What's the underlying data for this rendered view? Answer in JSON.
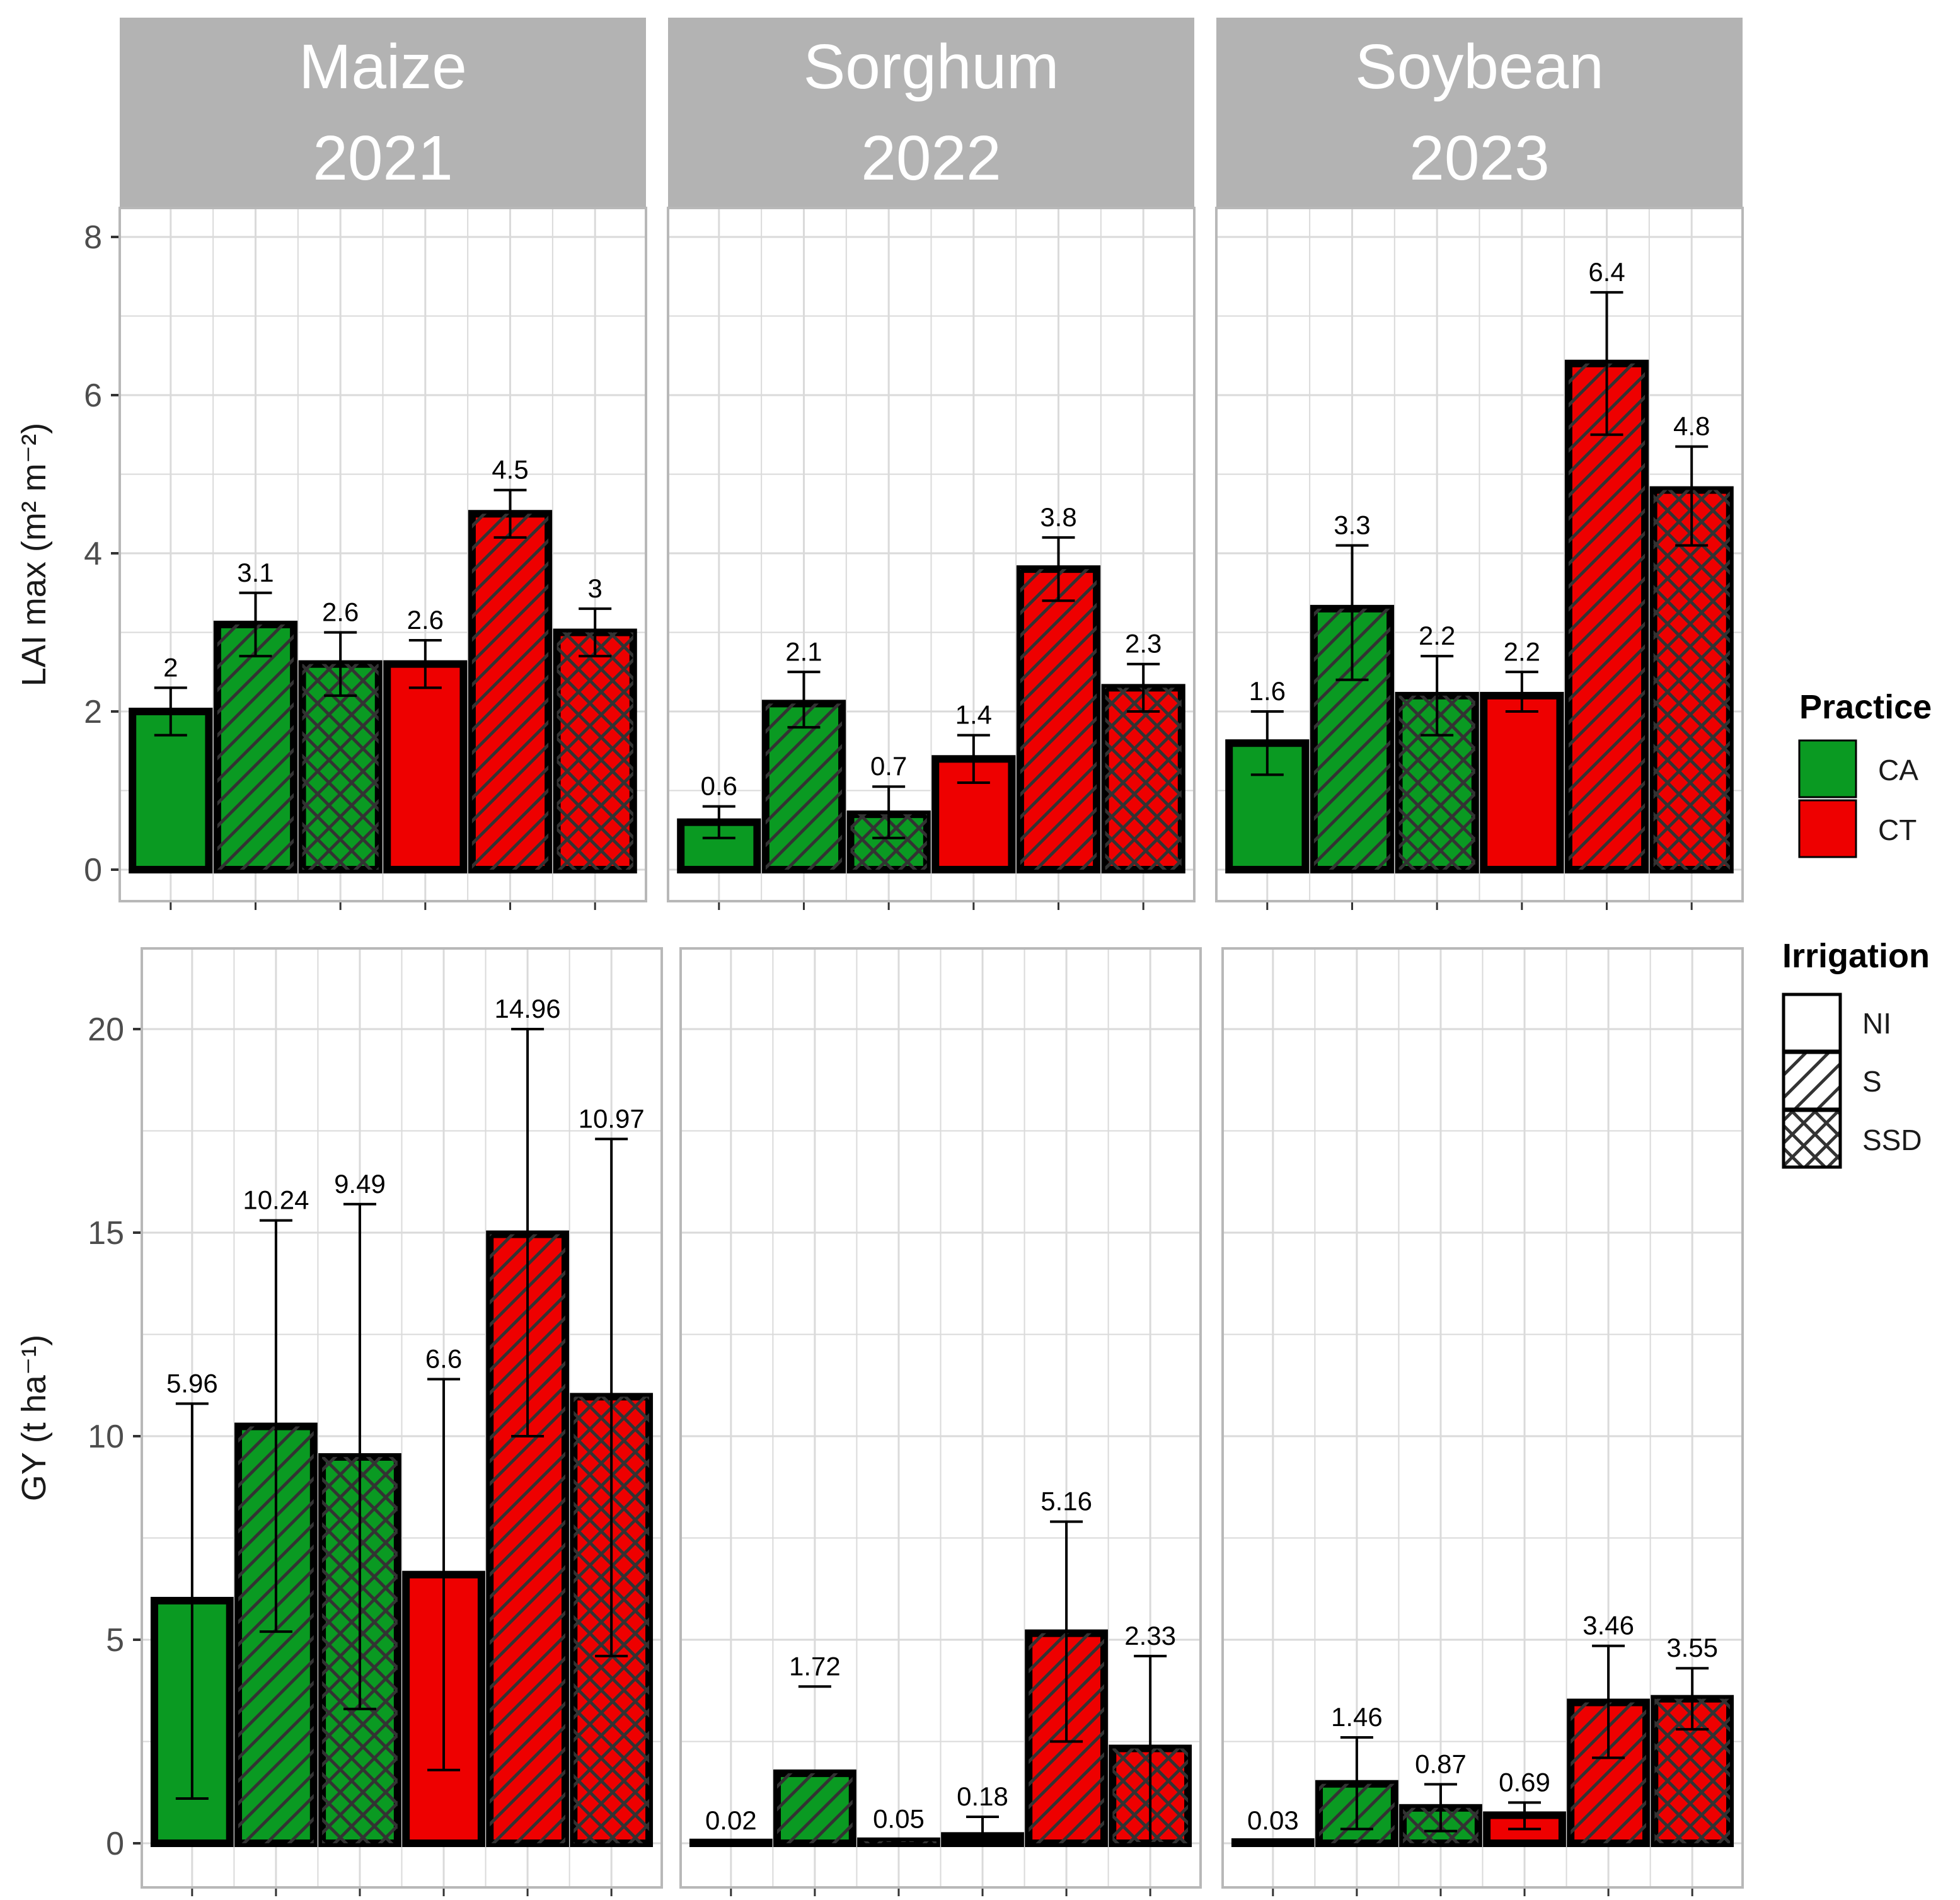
{
  "colors": {
    "CA": "#0A9A22",
    "CT": "#EE0000",
    "strip": "#B3B3B3",
    "grid": "#DADADA",
    "border": "#B8B8B8",
    "NI": "#FFFFFF"
  },
  "chart_data": {
    "type": "bar",
    "categories": [
      "CA NI",
      "CA S",
      "CA SSD",
      "CT NI",
      "CT S",
      "CT SSD"
    ],
    "facets": [
      {
        "crop": "Maize",
        "year": "2021"
      },
      {
        "crop": "Sorghum",
        "year": "2022"
      },
      {
        "crop": "Soybean",
        "year": "2023"
      }
    ],
    "rows": [
      {
        "ylabel": "LAI max (m² m⁻²)",
        "ylim": [
          0,
          8
        ],
        "yticks": [
          "0",
          "2",
          "4",
          "6",
          "8"
        ],
        "panels": [
          {
            "values": [
              2.0,
              3.1,
              2.6,
              2.6,
              4.5,
              3.0
            ],
            "labels": [
              "2",
              "3.1",
              "2.6",
              "2.6",
              "4.5",
              "3"
            ],
            "err_low": [
              1.7,
              2.7,
              2.2,
              2.3,
              4.2,
              2.7
            ],
            "err_high": [
              2.3,
              3.5,
              3.0,
              2.9,
              4.8,
              3.3
            ]
          },
          {
            "values": [
              0.6,
              2.1,
              0.7,
              1.4,
              3.8,
              2.3
            ],
            "labels": [
              "0.6",
              "2.1",
              "0.7",
              "1.4",
              "3.8",
              "2.3"
            ],
            "err_low": [
              0.4,
              1.8,
              0.4,
              1.1,
              3.4,
              2.0
            ],
            "err_high": [
              0.8,
              2.5,
              1.05,
              1.7,
              4.2,
              2.6
            ]
          },
          {
            "values": [
              1.6,
              3.3,
              2.2,
              2.2,
              6.4,
              4.8
            ],
            "labels": [
              "1.6",
              "3.3",
              "2.2",
              "2.2",
              "6.4",
              "4.8"
            ],
            "err_low": [
              1.2,
              2.4,
              1.7,
              2.0,
              5.5,
              4.1
            ],
            "err_high": [
              2.0,
              4.1,
              2.7,
              2.5,
              7.3,
              5.35
            ]
          }
        ]
      },
      {
        "ylabel": "GY (t ha⁻¹)",
        "ylim": [
          0,
          21
        ],
        "yticks": [
          "0",
          "5",
          "10",
          "15",
          "20"
        ],
        "panels": [
          {
            "values": [
              5.96,
              10.24,
              9.49,
              6.6,
              14.96,
              10.97
            ],
            "labels": [
              "5.96",
              "10.24",
              "9.49",
              "6.6",
              "14.96",
              "10.97"
            ],
            "err_low": [
              1.1,
              5.2,
              3.3,
              1.8,
              10.0,
              4.6
            ],
            "err_high": [
              10.8,
              15.3,
              15.7,
              11.4,
              20.0,
              17.3
            ]
          },
          {
            "values": [
              0.02,
              1.72,
              0.05,
              0.18,
              5.16,
              2.33
            ],
            "labels": [
              "0.02",
              "1.72",
              "0.05",
              "0.18",
              "5.16",
              "2.33"
            ],
            "err_low": [
              0.0,
              3.85,
              0.0,
              0.18,
              2.5,
              0.0
            ],
            "err_high": [
              0.06,
              3.85,
              0.1,
              0.65,
              7.9,
              4.6
            ]
          },
          {
            "values": [
              0.03,
              1.46,
              0.87,
              0.69,
              3.46,
              3.55
            ],
            "labels": [
              "0.03",
              "1.46",
              "0.87",
              "0.69",
              "3.46",
              "3.55"
            ],
            "err_low": [
              0.0,
              0.35,
              0.3,
              0.35,
              2.1,
              2.8
            ],
            "err_high": [
              0.06,
              2.6,
              1.45,
              1.0,
              4.85,
              4.3
            ]
          }
        ]
      }
    ],
    "legend": {
      "practice_title": "Practice",
      "practice_items": [
        "CA",
        "CT"
      ],
      "irrigation_title": "Irrigation",
      "irrigation_items": [
        "NI",
        "S",
        "SSD"
      ],
      "position": "right"
    }
  }
}
